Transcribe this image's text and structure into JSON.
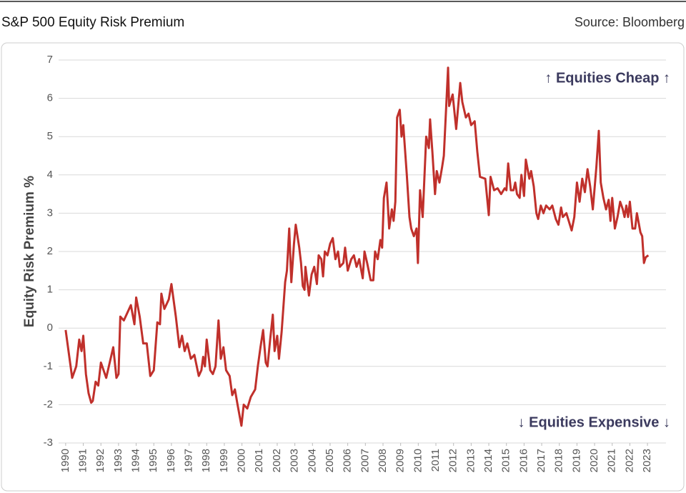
{
  "chart_data": {
    "type": "line",
    "title": "S&P 500 Equity Risk Premium",
    "subtitle": "Source: Bloomberg",
    "y_label": "Equity Risk Premium %",
    "annotations": [
      "↑ Equities Cheap ↑",
      "↓ Equities Expensive ↓"
    ],
    "xlim": [
      1989.6,
      2024.05
    ],
    "xticks": [
      1990,
      1991,
      1992,
      1993,
      1994,
      1995,
      1996,
      1997,
      1998,
      1999,
      2000,
      2001,
      2002,
      2003,
      2004,
      2005,
      2006,
      2007,
      2008,
      2009,
      2010,
      2011,
      2012,
      2013,
      2014,
      2015,
      2016,
      2017,
      2018,
      2019,
      2020,
      2021,
      2022,
      2023
    ],
    "ylim": [
      -3,
      7
    ],
    "yticks": [
      -3,
      -2,
      -1,
      0,
      1,
      2,
      3,
      4,
      5,
      6,
      7
    ],
    "grid": true,
    "series": [
      {
        "color": "#c0302b",
        "x": [
          1990.0,
          1990.37,
          1990.6,
          1990.77,
          1990.9,
          1991.0,
          1991.15,
          1991.3,
          1991.45,
          1991.54,
          1991.7,
          1991.85,
          1992.0,
          1992.3,
          1992.5,
          1992.7,
          1992.88,
          1993.0,
          1993.1,
          1993.3,
          1993.5,
          1993.7,
          1993.9,
          1994.0,
          1994.2,
          1994.4,
          1994.6,
          1994.8,
          1995.0,
          1995.2,
          1995.35,
          1995.43,
          1995.6,
          1995.85,
          1996.0,
          1996.25,
          1996.45,
          1996.6,
          1996.75,
          1996.9,
          1997.1,
          1997.3,
          1997.55,
          1997.7,
          1997.8,
          1997.9,
          1998.0,
          1998.2,
          1998.35,
          1998.5,
          1998.67,
          1998.8,
          1998.95,
          1999.1,
          1999.3,
          1999.45,
          1999.6,
          1999.75,
          1999.97,
          2000.1,
          2000.3,
          2000.5,
          2000.75,
          2000.9,
          2001.05,
          2001.2,
          2001.35,
          2001.45,
          2001.6,
          2001.75,
          2001.85,
          2002.0,
          2002.1,
          2002.25,
          2002.45,
          2002.55,
          2002.68,
          2002.8,
          2002.95,
          2003.05,
          2003.25,
          2003.35,
          2003.45,
          2003.55,
          2003.6,
          2003.8,
          2003.95,
          2004.1,
          2004.25,
          2004.35,
          2004.5,
          2004.6,
          2004.7,
          2004.85,
          2005.0,
          2005.15,
          2005.3,
          2005.45,
          2005.55,
          2005.75,
          2005.85,
          2006.0,
          2006.2,
          2006.35,
          2006.5,
          2006.65,
          2006.85,
          2006.95,
          2007.1,
          2007.3,
          2007.45,
          2007.55,
          2007.7,
          2007.85,
          2007.95,
          2008.05,
          2008.2,
          2008.35,
          2008.5,
          2008.6,
          2008.7,
          2008.8,
          2008.95,
          2009.05,
          2009.15,
          2009.35,
          2009.5,
          2009.6,
          2009.75,
          2009.9,
          2009.98,
          2010.1,
          2010.25,
          2010.45,
          2010.6,
          2010.67,
          2010.8,
          2010.95,
          2011.05,
          2011.2,
          2011.35,
          2011.45,
          2011.69,
          2011.75,
          2011.95,
          2012.15,
          2012.38,
          2012.5,
          2012.7,
          2012.85,
          2013.0,
          2013.2,
          2013.35,
          2013.5,
          2013.8,
          2014.0,
          2014.1,
          2014.3,
          2014.5,
          2014.7,
          2014.9,
          2015.0,
          2015.1,
          2015.25,
          2015.4,
          2015.5,
          2015.6,
          2015.75,
          2015.85,
          2016.0,
          2016.1,
          2016.3,
          2016.4,
          2016.55,
          2016.7,
          2016.8,
          2016.95,
          2017.1,
          2017.25,
          2017.45,
          2017.6,
          2017.8,
          2017.95,
          2018.1,
          2018.2,
          2018.4,
          2018.7,
          2018.85,
          2019.0,
          2019.15,
          2019.3,
          2019.45,
          2019.6,
          2019.75,
          2019.9,
          2020.1,
          2020.24,
          2020.35,
          2020.5,
          2020.65,
          2020.8,
          2020.9,
          2021.0,
          2021.15,
          2021.3,
          2021.45,
          2021.6,
          2021.7,
          2021.8,
          2021.9,
          2022.0,
          2022.15,
          2022.3,
          2022.4,
          2022.6,
          2022.7,
          2022.8,
          2022.9,
          2023.05
        ],
        "values": [
          -0.05,
          -1.3,
          -1.0,
          -0.3,
          -0.6,
          -0.2,
          -1.2,
          -1.7,
          -1.95,
          -1.9,
          -1.4,
          -1.5,
          -0.9,
          -1.3,
          -0.9,
          -0.5,
          -1.3,
          -1.2,
          0.3,
          0.2,
          0.4,
          0.6,
          0.1,
          0.8,
          0.3,
          -0.4,
          -0.4,
          -1.25,
          -1.1,
          0.15,
          0.1,
          0.9,
          0.5,
          0.75,
          1.15,
          0.3,
          -0.5,
          -0.2,
          -0.6,
          -0.4,
          -0.8,
          -0.7,
          -1.25,
          -1.1,
          -0.75,
          -1.0,
          -0.3,
          -1.1,
          -1.2,
          -1.0,
          0.2,
          -0.8,
          -0.5,
          -1.1,
          -1.25,
          -1.75,
          -1.6,
          -2.0,
          -2.55,
          -2.0,
          -2.1,
          -1.8,
          -1.6,
          -1.0,
          -0.5,
          -0.05,
          -0.9,
          -1.0,
          -0.3,
          0.35,
          -0.6,
          -0.2,
          -0.8,
          -0.1,
          1.2,
          1.5,
          2.6,
          1.2,
          2.2,
          2.7,
          2.1,
          1.7,
          1.1,
          1.0,
          1.6,
          0.85,
          1.4,
          1.6,
          1.15,
          1.9,
          1.8,
          1.35,
          2.0,
          1.9,
          2.2,
          2.35,
          1.8,
          2.0,
          1.6,
          1.7,
          2.1,
          1.5,
          1.8,
          1.9,
          1.6,
          1.8,
          1.3,
          2.0,
          1.7,
          1.25,
          1.25,
          2.0,
          1.8,
          2.3,
          2.1,
          3.4,
          3.8,
          2.6,
          3.1,
          2.8,
          3.3,
          5.5,
          5.7,
          5.0,
          5.3,
          4.0,
          2.9,
          2.6,
          2.4,
          2.6,
          1.7,
          3.6,
          2.9,
          5.0,
          4.7,
          5.45,
          4.6,
          3.5,
          4.1,
          3.8,
          4.2,
          4.5,
          6.8,
          5.8,
          6.1,
          5.2,
          6.4,
          5.9,
          5.5,
          5.6,
          5.3,
          5.4,
          4.6,
          3.95,
          3.9,
          2.95,
          3.95,
          3.6,
          3.65,
          3.5,
          3.65,
          3.6,
          4.3,
          3.6,
          3.6,
          3.8,
          3.5,
          3.4,
          4.0,
          3.45,
          4.4,
          3.9,
          4.1,
          3.7,
          3.0,
          2.85,
          3.2,
          3.0,
          3.2,
          3.1,
          3.2,
          2.85,
          2.7,
          3.15,
          2.9,
          3.0,
          2.55,
          2.9,
          3.8,
          3.3,
          3.9,
          3.55,
          4.15,
          3.7,
          3.1,
          4.2,
          5.15,
          3.8,
          3.4,
          3.1,
          3.35,
          2.8,
          3.4,
          2.6,
          2.9,
          3.3,
          3.1,
          2.9,
          3.2,
          2.9,
          3.3,
          2.6,
          2.6,
          3.0,
          2.5,
          2.4,
          1.7,
          1.85,
          1.9
        ]
      }
    ]
  }
}
